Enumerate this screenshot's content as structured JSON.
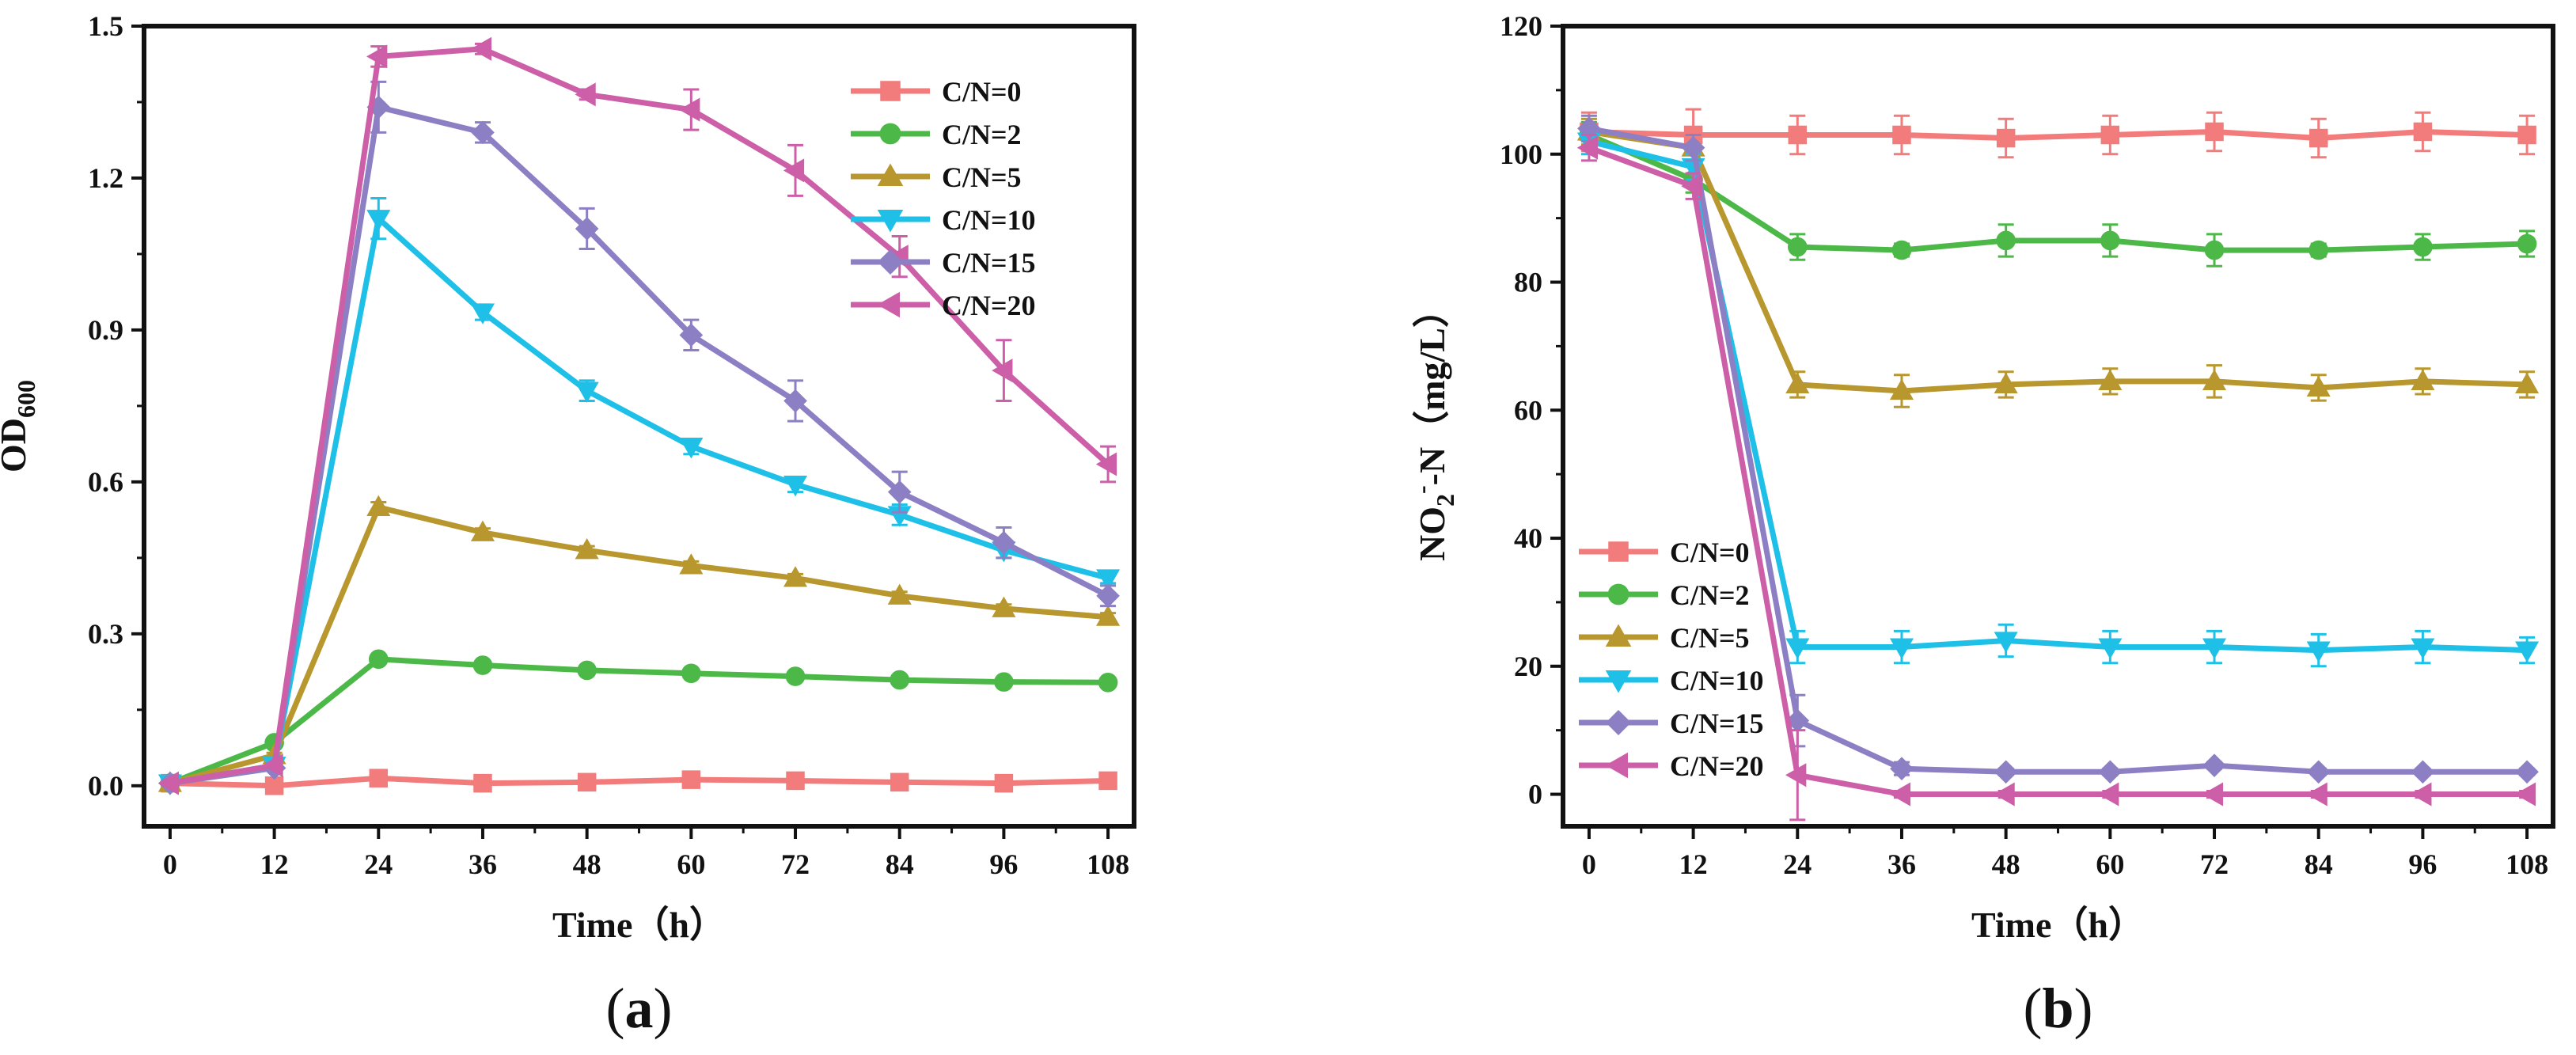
{
  "chart_data": [
    {
      "type": "line",
      "panel_label": "a",
      "title": "",
      "xlabel": "Time（h）",
      "ylabel": "OD",
      "ylabel_subscript": "600",
      "x": [
        0,
        12,
        24,
        36,
        48,
        60,
        72,
        84,
        96,
        108
      ],
      "xlim": [
        -3,
        111
      ],
      "ylim": [
        -0.08,
        1.5
      ],
      "xticks": [
        "0",
        "12",
        "24",
        "36",
        "48",
        "60",
        "72",
        "84",
        "96",
        "108"
      ],
      "yticks": [
        "0.0",
        "0.3",
        "0.6",
        "0.9",
        "1.2",
        "1.5"
      ],
      "ytick_values": [
        0.0,
        0.3,
        0.6,
        0.9,
        1.2,
        1.5
      ],
      "legend_position": "top-right",
      "series": [
        {
          "name": "C/N=0",
          "color": "#f27b7b",
          "marker": "square",
          "values": [
            0.005,
            0.0,
            0.015,
            0.005,
            0.007,
            0.012,
            0.01,
            0.007,
            0.005,
            0.01
          ],
          "errors": [
            0.005,
            0.005,
            0.005,
            0.003,
            0.003,
            0.005,
            0.005,
            0.003,
            0.003,
            0.005
          ]
        },
        {
          "name": "C/N=2",
          "color": "#4cb848",
          "marker": "circle",
          "values": [
            0.005,
            0.085,
            0.25,
            0.238,
            0.228,
            0.222,
            0.216,
            0.209,
            0.205,
            0.204
          ],
          "errors": [
            0.005,
            0.005,
            0.008,
            0.005,
            0.005,
            0.005,
            0.005,
            0.005,
            0.005,
            0.005
          ]
        },
        {
          "name": "C/N=5",
          "color": "#b8972e",
          "marker": "triangle-up",
          "values": [
            0.005,
            0.06,
            0.55,
            0.5,
            0.465,
            0.435,
            0.41,
            0.375,
            0.35,
            0.333
          ],
          "errors": [
            0.005,
            0.005,
            0.01,
            0.008,
            0.008,
            0.008,
            0.008,
            0.008,
            0.008,
            0.008
          ]
        },
        {
          "name": "C/N=10",
          "color": "#1ec0e8",
          "marker": "triangle-down",
          "values": [
            0.005,
            0.04,
            1.12,
            0.935,
            0.78,
            0.67,
            0.595,
            0.535,
            0.465,
            0.41
          ],
          "errors": [
            0.005,
            0.005,
            0.04,
            0.015,
            0.02,
            0.015,
            0.015,
            0.02,
            0.015,
            0.01
          ]
        },
        {
          "name": "C/N=15",
          "color": "#8d7fc4",
          "marker": "diamond",
          "values": [
            0.005,
            0.035,
            1.34,
            1.29,
            1.1,
            0.89,
            0.76,
            0.58,
            0.48,
            0.375
          ],
          "errors": [
            0.005,
            0.005,
            0.05,
            0.02,
            0.04,
            0.03,
            0.04,
            0.04,
            0.03,
            0.02
          ]
        },
        {
          "name": "C/N=20",
          "color": "#cc5fa8",
          "marker": "triangle-left",
          "values": [
            0.005,
            0.04,
            1.44,
            1.455,
            1.365,
            1.335,
            1.215,
            1.045,
            0.82,
            0.635
          ],
          "errors": [
            0.005,
            0.005,
            0.02,
            0.01,
            0.01,
            0.04,
            0.05,
            0.04,
            0.06,
            0.035
          ]
        }
      ]
    },
    {
      "type": "line",
      "panel_label": "b",
      "title": "",
      "xlabel": "Time（h）",
      "ylabel_main": "NO",
      "ylabel_subscript": "2",
      "ylabel_superscript": "-",
      "ylabel_rest": "-N（mg/L）",
      "x": [
        0,
        12,
        24,
        36,
        48,
        60,
        72,
        84,
        96,
        108
      ],
      "xlim": [
        -3,
        111
      ],
      "ylim": [
        -5,
        120
      ],
      "xticks": [
        "0",
        "12",
        "24",
        "36",
        "48",
        "60",
        "72",
        "84",
        "96",
        "108"
      ],
      "yticks": [
        "0",
        "20",
        "40",
        "60",
        "80",
        "100",
        "120"
      ],
      "ytick_values": [
        0,
        20,
        40,
        60,
        80,
        100,
        120
      ],
      "legend_position": "center-left",
      "series": [
        {
          "name": "C/N=0",
          "color": "#f27b7b",
          "marker": "square",
          "values": [
            103.5,
            103.0,
            103.0,
            103.0,
            102.5,
            103.0,
            103.5,
            102.5,
            103.5,
            103.0
          ],
          "errors": [
            3,
            4,
            3,
            3,
            3,
            3,
            3,
            3,
            3,
            3
          ]
        },
        {
          "name": "C/N=2",
          "color": "#4cb848",
          "marker": "circle",
          "values": [
            103.0,
            96.0,
            85.5,
            85.0,
            86.5,
            86.5,
            85.0,
            85.0,
            85.5,
            86.0
          ],
          "errors": [
            2,
            2,
            2,
            1,
            2.5,
            2.5,
            2.5,
            1,
            2,
            2
          ]
        },
        {
          "name": "C/N=5",
          "color": "#b8972e",
          "marker": "triangle-up",
          "values": [
            103.5,
            101.0,
            64.0,
            63.0,
            64.0,
            64.5,
            64.5,
            63.5,
            64.5,
            64.0
          ],
          "errors": [
            2,
            2,
            2,
            2.5,
            2,
            2,
            2.5,
            2,
            2,
            2
          ]
        },
        {
          "name": "C/N=10",
          "color": "#1ec0e8",
          "marker": "triangle-down",
          "values": [
            102.0,
            98.0,
            23.0,
            23.0,
            24.0,
            23.0,
            23.0,
            22.5,
            23.0,
            22.5
          ],
          "errors": [
            2,
            2,
            2.5,
            2.5,
            2.5,
            2.5,
            2.5,
            2.5,
            2.5,
            2
          ]
        },
        {
          "name": "C/N=15",
          "color": "#8d7fc4",
          "marker": "diamond",
          "values": [
            104.0,
            101.0,
            11.5,
            4.0,
            3.5,
            3.5,
            4.5,
            3.5,
            3.5,
            3.5
          ],
          "errors": [
            2,
            2,
            4,
            1,
            0.5,
            0.5,
            0.5,
            0.5,
            0.5,
            0.5
          ]
        },
        {
          "name": "C/N=20",
          "color": "#cc5fa8",
          "marker": "triangle-left",
          "values": [
            101.0,
            95.0,
            3.0,
            0.0,
            0.0,
            0.0,
            0.0,
            0.0,
            0.0,
            0.0
          ],
          "errors": [
            2,
            2,
            7,
            0.5,
            0.5,
            0.5,
            0.5,
            0.5,
            0.5,
            0.5
          ]
        }
      ]
    }
  ]
}
